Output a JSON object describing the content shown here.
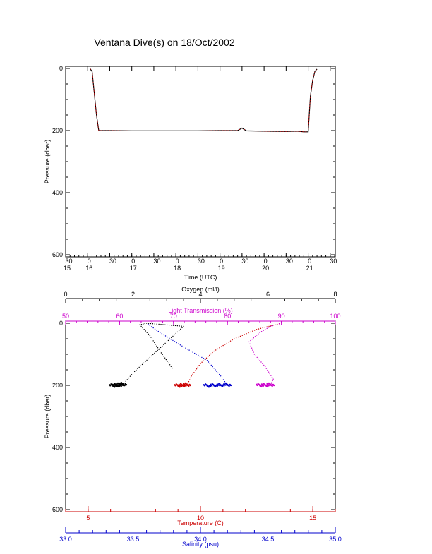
{
  "title": "Ventana Dive(s) on 18/Oct/2002",
  "colors": {
    "axis": "#000000",
    "pressure_trace": "#cc0000",
    "light_transmission": "#cc00cc",
    "temperature": "#cc0000",
    "salinity": "#0000cc",
    "oxygen": "#000000"
  },
  "chart_data": [
    {
      "type": "line",
      "title": "Ventana Dive(s) on 18/Oct/2002",
      "xlabel": "Time (UTC)",
      "ylabel": "Pressure (dbar)",
      "ylim": [
        600,
        0
      ],
      "y_ticks": [
        "0",
        "200",
        "400",
        "600"
      ],
      "x_ticks": [
        {
          "top": ":30",
          "bottom": "15:"
        },
        {
          "top": ":0",
          "bottom": "16:"
        },
        {
          "top": ":30",
          "bottom": ""
        },
        {
          "top": ":0",
          "bottom": "17:"
        },
        {
          "top": ":30",
          "bottom": ""
        },
        {
          "top": ":0",
          "bottom": "18:"
        },
        {
          "top": ":30",
          "bottom": ""
        },
        {
          "top": ":0",
          "bottom": "19:"
        },
        {
          "top": ":30",
          "bottom": ""
        },
        {
          "top": ":0",
          "bottom": "20:"
        },
        {
          "top": ":30",
          "bottom": ""
        },
        {
          "top": ":0",
          "bottom": "21:"
        },
        {
          "top": ":30",
          "bottom": ""
        }
      ],
      "series": [
        {
          "hours": [
            16.05,
            16.1,
            16.2,
            16.25,
            16.5,
            17,
            17.5,
            18,
            18.5,
            19,
            19.4,
            19.5,
            19.6,
            20,
            20.5,
            20.75,
            20.9,
            21.0,
            21.05,
            21.1,
            21.15,
            21.2
          ],
          "pressure": [
            0,
            10,
            150,
            200,
            200,
            201,
            201,
            201,
            201,
            200,
            200,
            192,
            201,
            202,
            203,
            202,
            204,
            204,
            90,
            40,
            10,
            2
          ]
        }
      ]
    },
    {
      "type": "scatter",
      "ylabel": "Pressure (dbar)",
      "ylim": [
        600,
        0
      ],
      "y_ticks": [
        "0",
        "200",
        "400",
        "600"
      ],
      "axes": {
        "oxygen": {
          "label": "Oxygen (ml/l)",
          "range": [
            0,
            8
          ],
          "ticks": [
            "0",
            "2",
            "4",
            "6",
            "8"
          ]
        },
        "light_transmission": {
          "label": "Light Transmission (%)",
          "range": [
            50,
            100
          ],
          "ticks": [
            "50",
            "60",
            "70",
            "80",
            "90",
            "100"
          ]
        },
        "temperature": {
          "label": "Temperature (C)",
          "range": [
            4,
            16
          ],
          "ticks": [
            "5",
            "10",
            "15"
          ]
        },
        "salinity": {
          "label": "Salinity (psu)",
          "range": [
            33.0,
            35.0
          ],
          "ticks": [
            "33.0",
            "33.5",
            "34.0",
            "34.5",
            "35.0"
          ]
        }
      },
      "series": [
        {
          "variable": "oxygen",
          "x": [
            1.4,
            1.5,
            1.6,
            1.7,
            2.0,
            2.5,
            3.0,
            3.5,
            2.4,
            2.2,
            2.5,
            2.8,
            3.2
          ],
          "pressure": [
            203,
            202,
            200,
            198,
            160,
            110,
            60,
            10,
            0,
            5,
            40,
            90,
            150
          ]
        },
        {
          "variable": "temperature",
          "x": [
            9.0,
            9.2,
            9.4,
            9.6,
            10.0,
            10.6,
            11.5,
            12.5,
            13.6
          ],
          "pressure": [
            203,
            202,
            200,
            170,
            130,
            90,
            50,
            20,
            0
          ]
        },
        {
          "variable": "salinity",
          "x": [
            34.05,
            34.1,
            34.15,
            34.2,
            34.15,
            34.05,
            33.85,
            33.7,
            33.6
          ],
          "pressure": [
            203,
            202,
            201,
            200,
            170,
            120,
            70,
            30,
            0
          ]
        },
        {
          "variable": "light_transmission",
          "x": [
            86,
            87,
            88,
            88.5,
            87,
            85,
            84,
            86,
            88,
            90
          ],
          "pressure": [
            202,
            201,
            200,
            180,
            140,
            100,
            60,
            30,
            10,
            0
          ]
        }
      ]
    }
  ]
}
